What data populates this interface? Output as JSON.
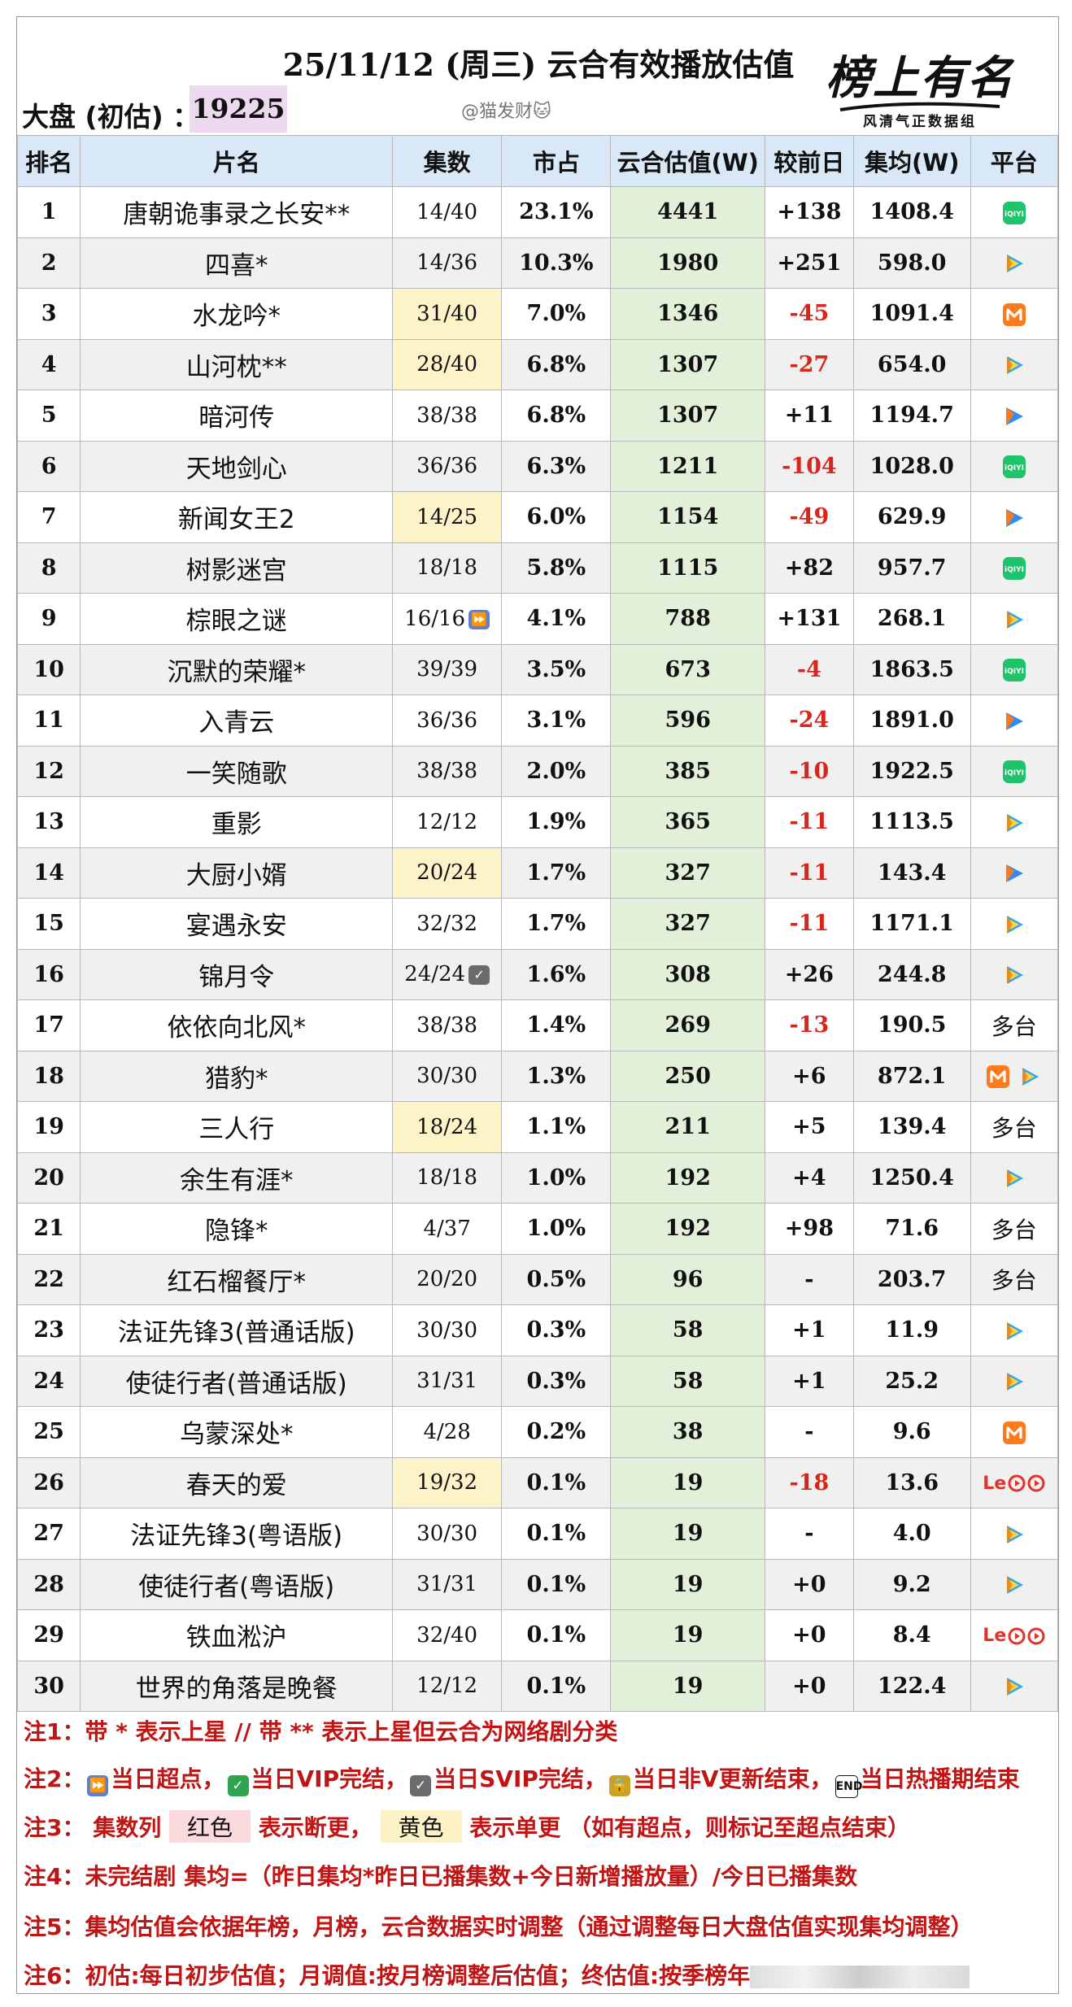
{
  "header": {
    "title": "25/11/12 (周三) 云合有效播放估值",
    "market_label": "大盘 (初估) ：",
    "market_value": "19225",
    "watermark": "@猫发财🐱",
    "logo_main": "榜上有名",
    "logo_sub": "风清气正数据组"
  },
  "table": {
    "columns": [
      "排名",
      "片名",
      "集数",
      "市占",
      "云合估值(W)",
      "较前日",
      "集均(W)",
      "平台"
    ],
    "rows": [
      {
        "rank": "1",
        "title": "唐朝诡事录之长安**",
        "episodes": "14/40",
        "share": "23.1%",
        "estimate": "4441",
        "change": "+138",
        "avg": "1408.4",
        "platform": "iqiyi",
        "neg": false,
        "ep_mark": "",
        "yellow": false
      },
      {
        "rank": "2",
        "title": "四喜*",
        "episodes": "14/36",
        "share": "10.3%",
        "estimate": "1980",
        "change": "+251",
        "avg": "598.0",
        "platform": "tencent",
        "neg": false,
        "ep_mark": "",
        "yellow": false
      },
      {
        "rank": "3",
        "title": "水龙吟*",
        "episodes": "31/40",
        "share": "7.0%",
        "estimate": "1346",
        "change": "-45",
        "avg": "1091.4",
        "platform": "mango",
        "neg": true,
        "ep_mark": "",
        "yellow": true
      },
      {
        "rank": "4",
        "title": "山河枕**",
        "episodes": "28/40",
        "share": "6.8%",
        "estimate": "1307",
        "change": "-27",
        "avg": "654.0",
        "platform": "tencent",
        "neg": true,
        "ep_mark": "",
        "yellow": true
      },
      {
        "rank": "5",
        "title": "暗河传",
        "episodes": "38/38",
        "share": "6.8%",
        "estimate": "1307",
        "change": "+11",
        "avg": "1194.7",
        "platform": "youku",
        "neg": false,
        "ep_mark": "",
        "yellow": false
      },
      {
        "rank": "6",
        "title": "天地剑心",
        "episodes": "36/36",
        "share": "6.3%",
        "estimate": "1211",
        "change": "-104",
        "avg": "1028.0",
        "platform": "iqiyi",
        "neg": true,
        "ep_mark": "",
        "yellow": false
      },
      {
        "rank": "7",
        "title": "新闻女王2",
        "episodes": "14/25",
        "share": "6.0%",
        "estimate": "1154",
        "change": "-49",
        "avg": "629.9",
        "platform": "youku",
        "neg": true,
        "ep_mark": "",
        "yellow": true
      },
      {
        "rank": "8",
        "title": "树影迷宫",
        "episodes": "18/18",
        "share": "5.8%",
        "estimate": "1115",
        "change": "+82",
        "avg": "957.7",
        "platform": "iqiyi",
        "neg": false,
        "ep_mark": "",
        "yellow": false
      },
      {
        "rank": "9",
        "title": "棕眼之谜",
        "episodes": "16/16",
        "share": "4.1%",
        "estimate": "788",
        "change": "+131",
        "avg": "268.1",
        "platform": "tencent",
        "neg": false,
        "ep_mark": "⏩",
        "yellow": false
      },
      {
        "rank": "10",
        "title": "沉默的荣耀*",
        "episodes": "39/39",
        "share": "3.5%",
        "estimate": "673",
        "change": "-4",
        "avg": "1863.5",
        "platform": "iqiyi",
        "neg": true,
        "ep_mark": "",
        "yellow": false
      },
      {
        "rank": "11",
        "title": "入青云",
        "episodes": "36/36",
        "share": "3.1%",
        "estimate": "596",
        "change": "-24",
        "avg": "1891.0",
        "platform": "youku",
        "neg": true,
        "ep_mark": "",
        "yellow": false
      },
      {
        "rank": "12",
        "title": "一笑随歌",
        "episodes": "38/38",
        "share": "2.0%",
        "estimate": "385",
        "change": "-10",
        "avg": "1922.5",
        "platform": "iqiyi",
        "neg": true,
        "ep_mark": "",
        "yellow": false
      },
      {
        "rank": "13",
        "title": "重影",
        "episodes": "12/12",
        "share": "1.9%",
        "estimate": "365",
        "change": "-11",
        "avg": "1113.5",
        "platform": "tencent",
        "neg": true,
        "ep_mark": "",
        "yellow": false
      },
      {
        "rank": "14",
        "title": "大厨小婿",
        "episodes": "20/24",
        "share": "1.7%",
        "estimate": "327",
        "change": "-11",
        "avg": "143.4",
        "platform": "youku",
        "neg": true,
        "ep_mark": "",
        "yellow": true
      },
      {
        "rank": "15",
        "title": "宴遇永安",
        "episodes": "32/32",
        "share": "1.7%",
        "estimate": "327",
        "change": "-11",
        "avg": "1171.1",
        "platform": "tencent",
        "neg": true,
        "ep_mark": "",
        "yellow": false
      },
      {
        "rank": "16",
        "title": "锦月令",
        "episodes": "24/24",
        "share": "1.6%",
        "estimate": "308",
        "change": "+26",
        "avg": "244.8",
        "platform": "tencent",
        "neg": false,
        "ep_mark": "✓",
        "yellow": false
      },
      {
        "rank": "17",
        "title": "依依向北风*",
        "episodes": "38/38",
        "share": "1.4%",
        "estimate": "269",
        "change": "-13",
        "avg": "190.5",
        "platform": "multi",
        "neg": true,
        "ep_mark": "",
        "yellow": false
      },
      {
        "rank": "18",
        "title": "猎豹*",
        "episodes": "30/30",
        "share": "1.3%",
        "estimate": "250",
        "change": "+6",
        "avg": "872.1",
        "platform": "mango+tencent",
        "neg": false,
        "ep_mark": "",
        "yellow": false
      },
      {
        "rank": "19",
        "title": "三人行",
        "episodes": "18/24",
        "share": "1.1%",
        "estimate": "211",
        "change": "+5",
        "avg": "139.4",
        "platform": "multi",
        "neg": false,
        "ep_mark": "",
        "yellow": true
      },
      {
        "rank": "20",
        "title": "余生有涯*",
        "episodes": "18/18",
        "share": "1.0%",
        "estimate": "192",
        "change": "+4",
        "avg": "1250.4",
        "platform": "tencent",
        "neg": false,
        "ep_mark": "",
        "yellow": false
      },
      {
        "rank": "21",
        "title": "隐锋*",
        "episodes": "4/37",
        "share": "1.0%",
        "estimate": "192",
        "change": "+98",
        "avg": "71.6",
        "platform": "multi",
        "neg": false,
        "ep_mark": "",
        "yellow": false
      },
      {
        "rank": "22",
        "title": "红石榴餐厅*",
        "episodes": "20/20",
        "share": "0.5%",
        "estimate": "96",
        "change": "-",
        "avg": "203.7",
        "platform": "multi",
        "neg": false,
        "ep_mark": "",
        "yellow": false
      },
      {
        "rank": "23",
        "title": "法证先锋3(普通话版)",
        "episodes": "30/30",
        "share": "0.3%",
        "estimate": "58",
        "change": "+1",
        "avg": "11.9",
        "platform": "tencent",
        "neg": false,
        "ep_mark": "",
        "yellow": false
      },
      {
        "rank": "24",
        "title": "使徒行者(普通话版)",
        "episodes": "31/31",
        "share": "0.3%",
        "estimate": "58",
        "change": "+1",
        "avg": "25.2",
        "platform": "tencent",
        "neg": false,
        "ep_mark": "",
        "yellow": false
      },
      {
        "rank": "25",
        "title": "乌蒙深处*",
        "episodes": "4/28",
        "share": "0.2%",
        "estimate": "38",
        "change": "-",
        "avg": "9.6",
        "platform": "mango",
        "neg": false,
        "ep_mark": "",
        "yellow": false
      },
      {
        "rank": "26",
        "title": "春天的爱",
        "episodes": "19/32",
        "share": "0.1%",
        "estimate": "19",
        "change": "-18",
        "avg": "13.6",
        "platform": "le+others",
        "neg": true,
        "ep_mark": "",
        "yellow": true
      },
      {
        "rank": "27",
        "title": "法证先锋3(粤语版)",
        "episodes": "30/30",
        "share": "0.1%",
        "estimate": "19",
        "change": "-",
        "avg": "4.0",
        "platform": "tencent",
        "neg": false,
        "ep_mark": "",
        "yellow": false
      },
      {
        "rank": "28",
        "title": "使徒行者(粤语版)",
        "episodes": "31/31",
        "share": "0.1%",
        "estimate": "19",
        "change": "+0",
        "avg": "9.2",
        "platform": "tencent",
        "neg": false,
        "ep_mark": "",
        "yellow": false
      },
      {
        "rank": "29",
        "title": "铁血淞沪",
        "episodes": "32/40",
        "share": "0.1%",
        "estimate": "19",
        "change": "+0",
        "avg": "8.4",
        "platform": "le+others",
        "neg": false,
        "ep_mark": "",
        "yellow": false
      },
      {
        "rank": "30",
        "title": "世界的角落是晚餐",
        "episodes": "12/12",
        "share": "0.1%",
        "estimate": "19",
        "change": "+0",
        "avg": "122.4",
        "platform": "tencent",
        "neg": false,
        "ep_mark": "",
        "yellow": false
      }
    ],
    "multi_label": "多台",
    "iqiyi_label": "iQIYI",
    "le_label": "Le"
  },
  "notes": {
    "n1": "注1：带 * 表示上星 // 带 ** 表示上星但云合为网络剧分类",
    "n2_prefix": "注2：",
    "n2_a": "当日超点，",
    "n2_b": "当日VIP完结，",
    "n2_c": "当日SVIP完结，",
    "n2_d": "当日非V更新结束，",
    "n2_e": "当日热播期结束",
    "n2_end_icon": "END",
    "n3_prefix": "注3：  集数列",
    "n3_red": "红色",
    "n3_mid": "表示断更，",
    "n3_yellow": "黄色",
    "n3_tail": "表示单更 （如有超点，则标记至超点结束）",
    "n4": "注4：未完结剧 集均=（昨日集均*昨日已播集数+今日新增播放量）/今日已播集数",
    "n5": "注5：集均估值会依据年榜，月榜，云合数据实时调整（通过调整每日大盘估值实现集均调整）",
    "n6": "注6：初估:每日初步估值；月调值:按月榜调整后估值；终估值:按季榜年"
  }
}
